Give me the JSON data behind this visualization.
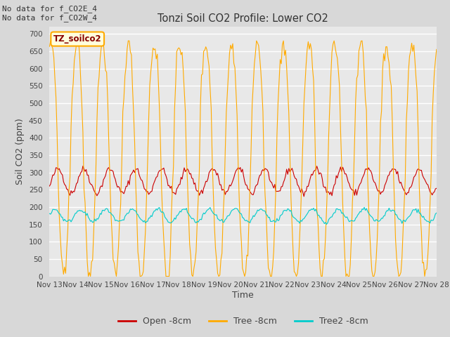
{
  "title": "Tonzi Soil CO2 Profile: Lower CO2",
  "xlabel": "Time",
  "ylabel": "Soil CO2 (ppm)",
  "ylim": [
    0,
    720
  ],
  "yticks": [
    0,
    50,
    100,
    150,
    200,
    250,
    300,
    350,
    400,
    450,
    500,
    550,
    600,
    650,
    700
  ],
  "legend_labels": [
    "Open -8cm",
    "Tree -8cm",
    "Tree2 -8cm"
  ],
  "legend_colors": [
    "#cc0000",
    "#ffaa00",
    "#00cccc"
  ],
  "line_colors": [
    "#cc0000",
    "#ffaa00",
    "#00cccc"
  ],
  "annotation_text": "No data for f_CO2E_4\nNo data for f_CO2W_4",
  "legend_box_text": "TZ_soilco2",
  "background_color": "#d8d8d8",
  "plot_bg_color": "#e8e8e8",
  "grid_color": "#ffffff",
  "xticklabels": [
    "Nov 13",
    "Nov 14",
    "Nov 15",
    "Nov 16",
    "Nov 17",
    "Nov 18",
    "Nov 19",
    "Nov 20",
    "Nov 21",
    "Nov 22",
    "Nov 23",
    "Nov 24",
    "Nov 25",
    "Nov 26",
    "Nov 27",
    "Nov 28"
  ],
  "n_days": 15,
  "open_base": 275,
  "open_amp": 35,
  "tree_base": 330,
  "tree_amp": 340,
  "tree2_base": 175,
  "tree2_amp": 18
}
